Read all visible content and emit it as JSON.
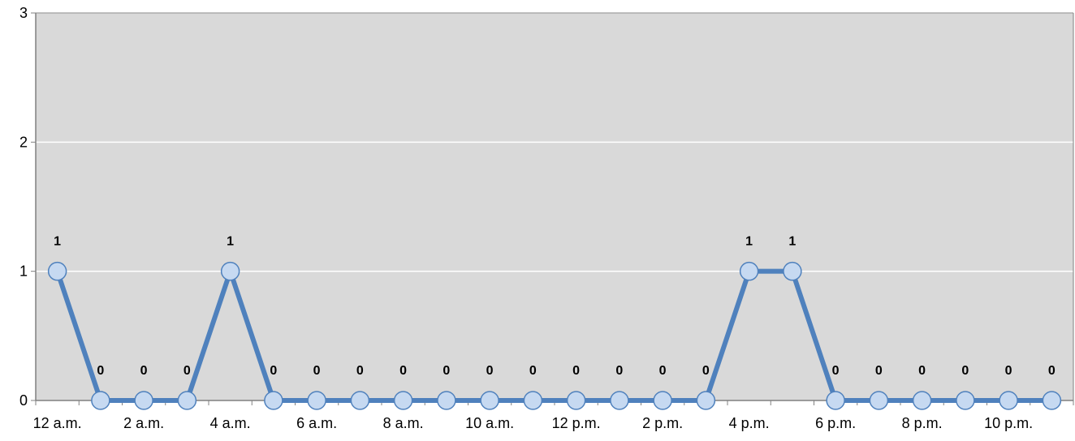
{
  "chart_data": {
    "type": "line",
    "title": "",
    "xlabel": "",
    "ylabel": "",
    "categories": [
      "12 a.m.",
      "1 a.m.",
      "2 a.m.",
      "3 a.m.",
      "4 a.m.",
      "5 a.m.",
      "6 a.m.",
      "7 a.m.",
      "8 a.m.",
      "9 a.m.",
      "10 a.m.",
      "11 a.m.",
      "12 p.m.",
      "1 p.m.",
      "2 p.m.",
      "3 p.m.",
      "4 p.m.",
      "5 p.m.",
      "6 p.m.",
      "7 p.m.",
      "8 p.m.",
      "9 p.m.",
      "10 p.m.",
      "11 p.m."
    ],
    "tick_labels": [
      "12 a.m.",
      "2 a.m.",
      "4 a.m.",
      "6 a.m.",
      "8 a.m.",
      "10 a.m.",
      "12 p.m.",
      "2 p.m.",
      "4 p.m.",
      "6 p.m.",
      "8 p.m.",
      "10 p.m."
    ],
    "values": [
      1,
      0,
      0,
      0,
      1,
      0,
      0,
      0,
      0,
      0,
      0,
      0,
      0,
      0,
      0,
      0,
      1,
      1,
      0,
      0,
      0,
      0,
      0,
      0
    ],
    "ylim": [
      0,
      3
    ],
    "yticks": [
      0,
      1,
      2,
      3
    ],
    "grid": true,
    "data_labels": true,
    "legend": "none",
    "colors": {
      "plot_background": "#d9d9d9",
      "gridline": "#ffffff",
      "line": "#4f81bd",
      "marker_fill": "#c6d9f1",
      "marker_stroke": "#4f81bd",
      "axis": "#808080"
    }
  }
}
